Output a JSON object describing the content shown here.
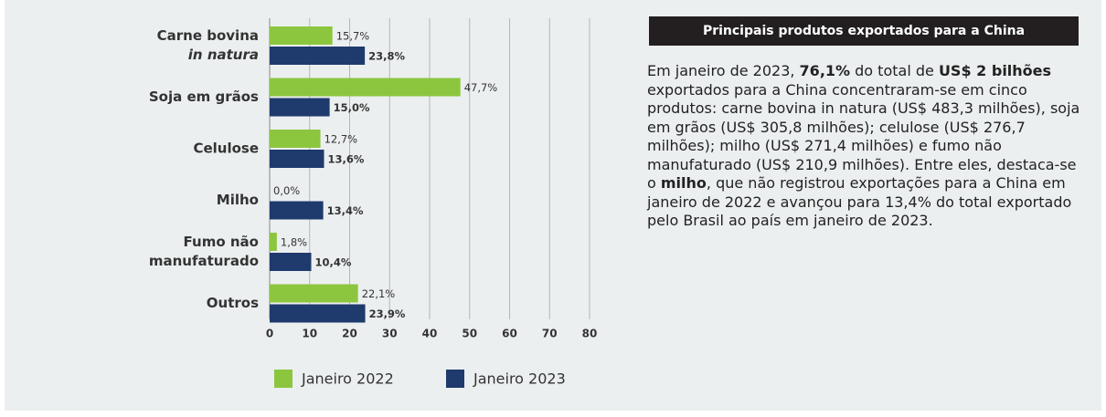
{
  "chart_data": {
    "type": "bar",
    "orientation": "horizontal",
    "categories": [
      [
        "Carne bovina",
        "in natura"
      ],
      [
        "Soja em grãos"
      ],
      [
        "Celulose"
      ],
      [
        "Milho"
      ],
      [
        "Fumo não",
        "manufaturado"
      ],
      [
        "Outros"
      ]
    ],
    "series": [
      {
        "name": "Janeiro 2022",
        "color": "#8cc63f",
        "values": [
          15.7,
          47.7,
          12.7,
          0.0,
          1.8,
          22.1
        ],
        "value_labels": [
          "15,7%",
          "47,7%",
          "12,7%",
          "0,0%",
          "1,8%",
          "22,1%"
        ]
      },
      {
        "name": "Janeiro 2023",
        "color": "#1f3a6d",
        "values": [
          23.8,
          15.0,
          13.6,
          13.4,
          10.4,
          23.9
        ],
        "value_labels": [
          "23,8%",
          "15,0%",
          "13,6%",
          "13,4%",
          "10,4%",
          "23,9%"
        ]
      }
    ],
    "xlim": [
      0,
      80
    ],
    "xticks": [
      0,
      10,
      20,
      30,
      40,
      50,
      60,
      70,
      80
    ],
    "grid": true
  },
  "panel": {
    "title": "Principais produtos exportados para a China",
    "paragraph": [
      {
        "text": "Em janeiro de 2023, "
      },
      {
        "text": "76,1%",
        "bold": true
      },
      {
        "text": " do total de "
      },
      {
        "text": "US$ 2 bilhões",
        "bold": true
      },
      {
        "text": " exportados para a China concentraram-se em cinco produtos: carne bovina in natura (US$ 483,3 milhões), soja em grãos (US$ 305,8 milhões); celulose (US$ 276,7 milhões); milho (US$ 271,4 milhões) e fumo não manufaturado (US$ 210,9 milhões). Entre eles, destaca-se o "
      },
      {
        "text": "milho",
        "bold": true
      },
      {
        "text": ", que não registrou exportações para a China em janeiro de 2022 e avançou para 13,4% do total exportado pelo Brasil ao país em janeiro de 2023."
      }
    ]
  }
}
